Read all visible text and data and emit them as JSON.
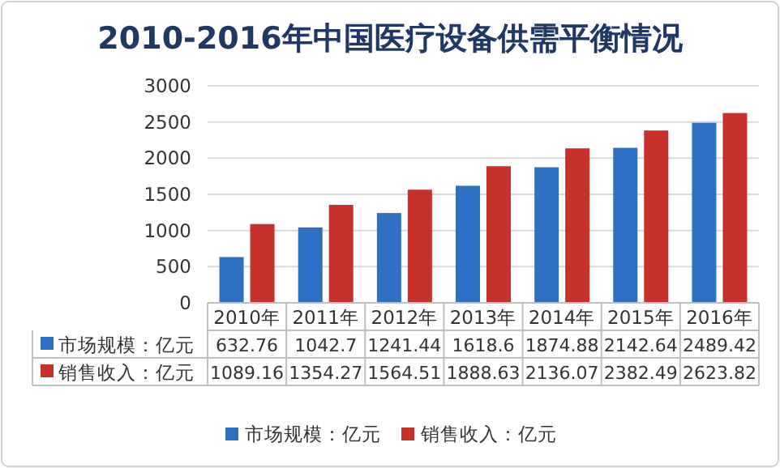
{
  "chart_data": {
    "type": "bar",
    "title": "2010-2016年中国医疗设备供需平衡情况",
    "categories": [
      "2010年",
      "2011年",
      "2012年",
      "2013年",
      "2014年",
      "2015年",
      "2016年"
    ],
    "series": [
      {
        "name": "市场规模：亿元",
        "color": "#2f6fc4",
        "values": [
          632.76,
          1042.7,
          1241.44,
          1618.6,
          1874.88,
          2142.64,
          2489.42
        ]
      },
      {
        "name": "销售收入：亿元",
        "color": "#c8302b",
        "values": [
          1089.16,
          1354.27,
          1564.51,
          1888.63,
          2136.07,
          2382.49,
          2623.82
        ]
      }
    ],
    "ylim": [
      0,
      3000
    ],
    "yticks": [
      0,
      500,
      1000,
      1500,
      2000,
      2500,
      3000
    ],
    "grid": "y",
    "legend": "bottom",
    "data_labels": true
  }
}
